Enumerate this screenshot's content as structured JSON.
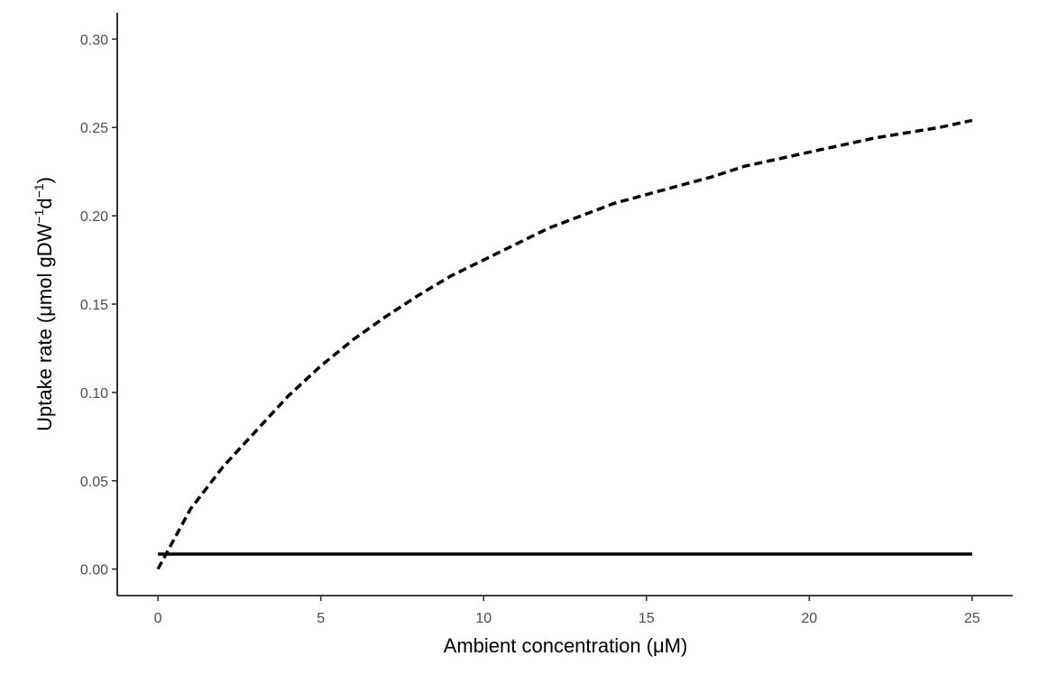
{
  "chart_data": {
    "type": "line",
    "title": "",
    "xlabel": "Ambient concentration (μM)",
    "ylabel": {
      "prefix": "Uptake rate (μmol gDW",
      "sup1": "−1",
      "mid": "d",
      "sup2": "−1",
      "suffix": ")"
    },
    "xlim": [
      -1.25,
      26.25
    ],
    "ylim": [
      -0.015,
      0.315
    ],
    "x_ticks": [
      0,
      5,
      10,
      15,
      20,
      25
    ],
    "x_tick_labels": [
      "0",
      "5",
      "10",
      "15",
      "20",
      "25"
    ],
    "y_ticks": [
      0,
      0.05,
      0.1,
      0.15,
      0.2,
      0.25,
      0.3
    ],
    "y_tick_labels": [
      "0.00",
      "0.05",
      "0.10",
      "0.15",
      "0.20",
      "0.25",
      "0.30"
    ],
    "grid": false,
    "legend": "none",
    "series": [
      {
        "style": "dashed",
        "x": [
          0,
          1,
          2,
          3,
          4,
          5,
          6,
          7,
          8,
          9,
          10,
          11,
          12,
          13,
          14,
          15,
          16,
          17,
          18,
          19,
          20,
          21,
          22,
          23,
          24,
          25
        ],
        "values": [
          0.0,
          0.034,
          0.058,
          0.078,
          0.098,
          0.115,
          0.13,
          0.143,
          0.155,
          0.166,
          0.175,
          0.184,
          0.193,
          0.2,
          0.207,
          0.212,
          0.217,
          0.222,
          0.228,
          0.232,
          0.236,
          0.24,
          0.244,
          0.247,
          0.25,
          0.254
        ]
      },
      {
        "style": "solid",
        "x": [
          0,
          25
        ],
        "values": [
          0.0085,
          0.0085
        ]
      }
    ]
  }
}
